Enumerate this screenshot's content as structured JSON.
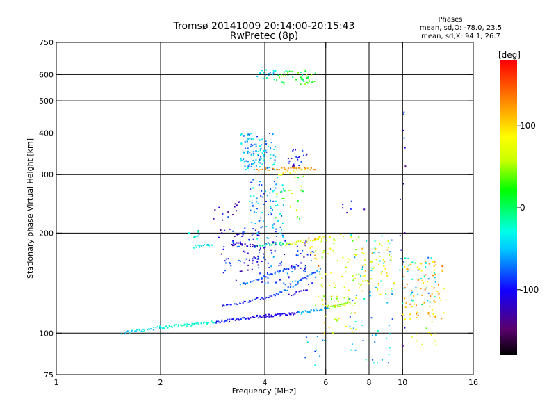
{
  "chart_data": {
    "type": "scatter",
    "title": "Tromsø 20141009 20:14:00-20:15:43",
    "subtitle": "RwPretec (8p)",
    "xlabel": "Frequency [MHz]",
    "ylabel": "Stationary phase Virtual Height [km]",
    "x_scale": "log",
    "y_scale": "log",
    "xlim": [
      1,
      16
    ],
    "ylim": [
      75,
      750
    ],
    "x_ticks": [
      1,
      2,
      4,
      6,
      8,
      10,
      16
    ],
    "x_tick_labels": [
      "1",
      "2",
      "4",
      "6",
      "8",
      "10",
      "16"
    ],
    "y_ticks": [
      75,
      100,
      200,
      300,
      400,
      500,
      600,
      750
    ],
    "y_tick_labels": [
      "75",
      "100",
      "200",
      "300",
      "400",
      "500",
      "600",
      "750"
    ],
    "grid_x": [
      2,
      4,
      6,
      8,
      10
    ],
    "grid_y": [
      100,
      200,
      300,
      400,
      500,
      600
    ],
    "stats": {
      "heading": "Phases",
      "line_o": "mean, sd,O: -78.0, 23.5",
      "line_x": "mean, sd,X:  94.1, 26.7"
    },
    "colorbar": {
      "label": "[deg]",
      "range": [
        -180,
        180
      ],
      "ticks": [
        100,
        0,
        -100
      ],
      "tick_labels": [
        "100",
        "0",
        "-100"
      ]
    },
    "traces": [
      {
        "x": [
          1.55,
          2.0
        ],
        "y": [
          100,
          104
        ],
        "phase": -40,
        "n": 26
      },
      {
        "x": [
          2.0,
          2.9
        ],
        "y": [
          104,
          108
        ],
        "phase": -25,
        "n": 40
      },
      {
        "x": [
          2.9,
          3.8
        ],
        "y": [
          108,
          112
        ],
        "phase": -95,
        "n": 40
      },
      {
        "x": [
          3.8,
          5.0
        ],
        "y": [
          112,
          115
        ],
        "phase": -110,
        "n": 40
      },
      {
        "x": [
          5.0,
          6.1
        ],
        "y": [
          115,
          119
        ],
        "phase": -60,
        "n": 28
      },
      {
        "x": [
          6.1,
          7.0
        ],
        "y": [
          119,
          123
        ],
        "phase": 40,
        "n": 18
      },
      {
        "x": [
          3.0,
          4.3
        ],
        "y": [
          120,
          130
        ],
        "phase": -95,
        "n": 32
      },
      {
        "x": [
          4.3,
          5.8
        ],
        "y": [
          130,
          155
        ],
        "phase": -75,
        "n": 30
      },
      {
        "x": [
          3.4,
          4.0
        ],
        "y": [
          140,
          148
        ],
        "phase": -70,
        "n": 14
      },
      {
        "x": [
          4.0,
          5.0
        ],
        "y": [
          148,
          160
        ],
        "phase": -85,
        "n": 22
      },
      {
        "x": [
          3.2,
          3.8
        ],
        "y": [
          186,
          183
        ],
        "phase": -120,
        "n": 18
      },
      {
        "x": [
          3.8,
          4.6
        ],
        "y": [
          183,
          187
        ],
        "phase": -10,
        "n": 18
      },
      {
        "x": [
          4.6,
          5.9
        ],
        "y": [
          184,
          194
        ],
        "phase": 75,
        "n": 24
      },
      {
        "x": [
          2.5,
          2.8
        ],
        "y": [
          182,
          184
        ],
        "phase": -40,
        "n": 14
      },
      {
        "x": [
          3.8,
          5.6
        ],
        "y": [
          311,
          313
        ],
        "phase": 130,
        "n": 32
      },
      {
        "x": [
          4.4,
          5.2
        ],
        "y": [
          300,
          310
        ],
        "phase": 80,
        "n": 12
      },
      {
        "x": [
          4.7,
          5.3
        ],
        "y": [
          130,
          135
        ],
        "phase": -110,
        "n": 10
      }
    ],
    "clusters": [
      {
        "x": [
          3.4,
          4.3
        ],
        "y": [
          310,
          400
        ],
        "phase": -55,
        "n": 120
      },
      {
        "x": [
          4.6,
          5.3
        ],
        "y": [
          315,
          360
        ],
        "phase": -110,
        "n": 20
      },
      {
        "x": [
          4.3,
          5.6
        ],
        "y": [
          560,
          620
        ],
        "phase": 20,
        "n": 45
      },
      {
        "x": [
          3.8,
          4.3
        ],
        "y": [
          580,
          620
        ],
        "phase": -50,
        "n": 18
      },
      {
        "x": [
          3.6,
          4.6
        ],
        "y": [
          190,
          300
        ],
        "phase": -60,
        "n": 90
      },
      {
        "x": [
          4.2,
          5.2
        ],
        "y": [
          220,
          300
        ],
        "phase": 40,
        "n": 20
      },
      {
        "x": [
          3.0,
          3.9
        ],
        "y": [
          140,
          210
        ],
        "phase": -100,
        "n": 60
      },
      {
        "x": [
          3.8,
          5.6
        ],
        "y": [
          140,
          190
        ],
        "phase": -90,
        "n": 90
      },
      {
        "x": [
          5.6,
          7.8
        ],
        "y": [
          120,
          200
        ],
        "phase": 65,
        "n": 70
      },
      {
        "x": [
          5.8,
          7.4
        ],
        "y": [
          100,
          130
        ],
        "phase": 80,
        "n": 30
      },
      {
        "x": [
          7.0,
          9.5
        ],
        "y": [
          80,
          200
        ],
        "phase": -50,
        "n": 60
      },
      {
        "x": [
          7.5,
          9.5
        ],
        "y": [
          130,
          190
        ],
        "phase": 85,
        "n": 50
      },
      {
        "x": [
          10.0,
          13.2
        ],
        "y": [
          110,
          165
        ],
        "phase": 110,
        "n": 80
      },
      {
        "x": [
          9.8,
          12.5
        ],
        "y": [
          120,
          170
        ],
        "phase": -40,
        "n": 40
      },
      {
        "x": [
          10.5,
          12.5
        ],
        "y": [
          90,
          110
        ],
        "phase": 60,
        "n": 12
      },
      {
        "x": [
          5.0,
          6.0
        ],
        "y": [
          80,
          98
        ],
        "phase": -60,
        "n": 10
      },
      {
        "x": [
          2.8,
          3.4
        ],
        "y": [
          190,
          240
        ],
        "phase": -110,
        "n": 16
      },
      {
        "x": [
          2.4,
          2.6
        ],
        "y": [
          188,
          205
        ],
        "phase": -40,
        "n": 8
      },
      {
        "x": [
          3.2,
          3.4
        ],
        "y": [
          235,
          250
        ],
        "phase": -110,
        "n": 5
      },
      {
        "x": [
          6.6,
          7.8
        ],
        "y": [
          220,
          250
        ],
        "phase": -110,
        "n": 6
      },
      {
        "x": [
          9.8,
          10.2
        ],
        "y": [
          80,
          500
        ],
        "phase": -110,
        "n": 14
      },
      {
        "x": [
          5.2,
          5.8
        ],
        "y": [
          150,
          200
        ],
        "phase": 120,
        "n": 10
      }
    ]
  }
}
